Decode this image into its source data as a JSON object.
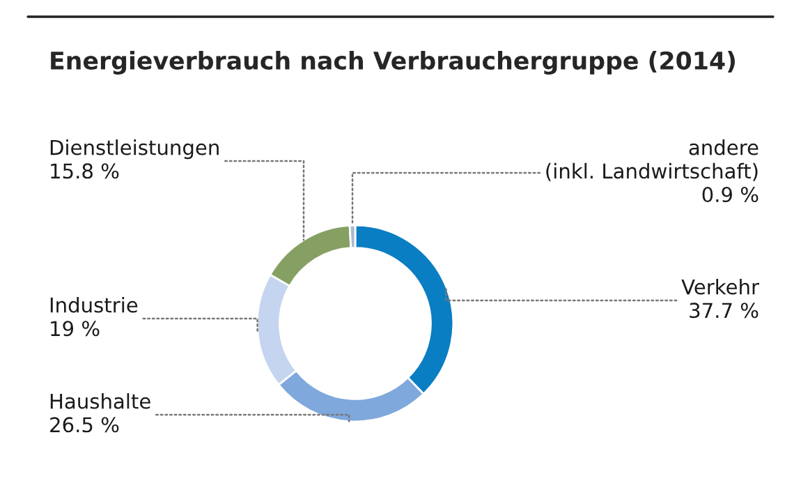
{
  "chart_data": {
    "type": "donut",
    "title": "Energieverbrauch nach Verbrauchergruppe (2014)",
    "categories": [
      "Verkehr",
      "Haushalte",
      "Industrie",
      "Dienstleistungen",
      "andere\n(inkl. Landwirtschaft)"
    ],
    "values": [
      37.7,
      26.5,
      19,
      15.8,
      0.9
    ],
    "value_labels": [
      "37.7 %",
      "26.5 %",
      "19 %",
      "15.8 %",
      "0.9 %"
    ],
    "colors": [
      "#0a7ec2",
      "#7fa8dc",
      "#c5d5ef",
      "#86a063",
      "#a9b9d6"
    ],
    "legend": false
  }
}
